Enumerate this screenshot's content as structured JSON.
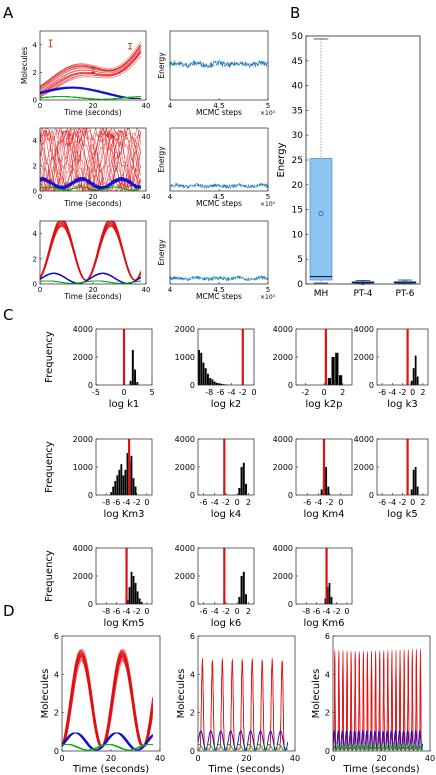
{
  "panels": {
    "A": "A",
    "B": "B",
    "C": "C",
    "D": "D"
  },
  "chart_data": [
    {
      "id": "A-trajectories",
      "type": "line",
      "xlabel": "Time (seconds)",
      "ylabel": "Molecules",
      "xlim": [
        0,
        40
      ],
      "ylim": [
        0,
        5
      ],
      "x_ticks": [
        "0",
        "20",
        "40"
      ],
      "y_ticks": [
        "0",
        "2",
        "4"
      ],
      "rows": [
        {
          "ylabel_shown": true,
          "y_ticks": [
            "0",
            "2",
            "4"
          ],
          "error_bars": [
            {
              "x": 4,
              "y": 4.1,
              "err": 0.25
            },
            {
              "x": 20,
              "y": 2.2,
              "err": 0.2
            },
            {
              "x": 34,
              "y": 3.9,
              "err": 0.2
            }
          ],
          "fit_style": "broad-red-fan"
        },
        {
          "ylabel_shown": false,
          "y_ticks": [
            "0",
            "2",
            "4"
          ],
          "fit_style": "noisy-oscillation"
        },
        {
          "ylabel_shown": false,
          "y_ticks": [
            "0",
            "2",
            "4"
          ],
          "fit_style": "clean-oscillation"
        }
      ],
      "series": [
        {
          "color": "#e01010"
        },
        {
          "color": "#1010d0"
        },
        {
          "color": "#10b010"
        }
      ]
    },
    {
      "id": "A-energy",
      "type": "line",
      "xlabel": "MCMC  steps",
      "ylabel": "Energy",
      "x_ticks": [
        "4",
        "4.5",
        "5"
      ],
      "x_exponent": "×10⁵",
      "xlim": [
        4,
        5
      ],
      "ylim": [
        0,
        100
      ],
      "color": "#1a78c0",
      "rows": [
        {
          "level": 52,
          "noise": 4
        },
        {
          "level": 8,
          "noise": 3
        },
        {
          "level": 9,
          "noise": 3
        }
      ]
    },
    {
      "id": "B-boxplot",
      "type": "box",
      "ylabel": "Energy",
      "ylim": [
        0,
        50
      ],
      "y_ticks": [
        "0",
        "5",
        "10",
        "15",
        "20",
        "25",
        "30",
        "35",
        "40",
        "45",
        "50"
      ],
      "categories": [
        "MH",
        "PT-4",
        "PT-6"
      ],
      "boxes": [
        {
          "whisker_low": 0.2,
          "q1": 0.8,
          "median": 1.5,
          "q3": 25.3,
          "whisker_high": 49.4,
          "mean": 14.2
        },
        {
          "whisker_low": 0.1,
          "q1": 0.2,
          "median": 0.3,
          "q3": 0.5,
          "whisker_high": 0.7,
          "mean": 0.3
        },
        {
          "whisker_low": 0.1,
          "q1": 0.2,
          "median": 0.3,
          "q3": 0.5,
          "whisker_high": 0.8,
          "mean": 0.4
        }
      ],
      "box_color": "#8cc4f2",
      "median_color": "#002060"
    },
    {
      "id": "C-histograms",
      "type": "bar",
      "ylabel": "Frequency",
      "ylim": [
        0,
        4000
      ],
      "y_ticks": [
        "0",
        "2000",
        "4000"
      ],
      "marker_color": "#e01010",
      "histograms": [
        {
          "xlabel": "log k1",
          "x_ticks": [
            {
              "v": -5,
              "t": "-5"
            },
            {
              "v": 0,
              "t": "0"
            },
            {
              "v": 5,
              "t": "5"
            }
          ],
          "xlim": [
            -5,
            5
          ],
          "y_ticks": [
            "0",
            "2000",
            "4000"
          ],
          "ylim": [
            0,
            4000
          ],
          "true_value": 0,
          "bins": [
            [
              1.0,
              300
            ],
            [
              1.4,
              2500
            ],
            [
              1.8,
              1100
            ],
            [
              2.2,
              200
            ]
          ]
        },
        {
          "xlabel": "log k2",
          "x_ticks": [
            {
              "v": -8,
              "t": "-8"
            },
            {
              "v": -6,
              "t": "-6"
            },
            {
              "v": -4,
              "t": "-4"
            },
            {
              "v": -2,
              "t": "-2"
            },
            {
              "v": 0,
              "t": "0"
            }
          ],
          "xlim": [
            -10,
            0
          ],
          "y_ticks": [
            "0",
            "1000",
            "2000"
          ],
          "ylim": [
            0,
            2000
          ],
          "true_value": -2,
          "bins": [
            [
              -10,
              1250
            ],
            [
              -9.6,
              1150
            ],
            [
              -9.2,
              800
            ],
            [
              -8.8,
              600
            ],
            [
              -8.4,
              400
            ],
            [
              -8.0,
              250
            ],
            [
              -7.6,
              200
            ],
            [
              -7.2,
              120
            ],
            [
              -6.8,
              80
            ],
            [
              -6.4,
              60
            ],
            [
              -6.0,
              40
            ],
            [
              -5.6,
              30
            ],
            [
              -5.2,
              20
            ],
            [
              -4.8,
              10
            ]
          ]
        },
        {
          "xlabel": "log k2p",
          "x_ticks": [
            {
              "v": -2,
              "t": "-2"
            },
            {
              "v": 0,
              "t": "0"
            },
            {
              "v": 2,
              "t": "2"
            }
          ],
          "xlim": [
            -3,
            3
          ],
          "y_ticks": [
            "0",
            "2000",
            "4000"
          ],
          "ylim": [
            0,
            4000
          ],
          "true_value": 0.2,
          "bins": [
            [
              0.4,
              500
            ],
            [
              0.8,
              2000
            ],
            [
              1.2,
              2300
            ],
            [
              1.6,
              700
            ]
          ]
        },
        {
          "xlabel": "log k3",
          "x_ticks": [
            {
              "v": -6,
              "t": "-6"
            },
            {
              "v": -4,
              "t": "-4"
            },
            {
              "v": -2,
              "t": "-2"
            },
            {
              "v": 0,
              "t": "0"
            },
            {
              "v": 2,
              "t": "2"
            }
          ],
          "xlim": [
            -7,
            3
          ],
          "y_ticks": [
            "0",
            "2000",
            "4000"
          ],
          "ylim": [
            0,
            4000
          ],
          "true_value": -1,
          "bins": [
            [
              -0.4,
              300
            ],
            [
              0.0,
              1200
            ],
            [
              0.4,
              2100
            ],
            [
              0.8,
              600
            ]
          ]
        },
        {
          "xlabel": "log Km3",
          "x_ticks": [
            {
              "v": -8,
              "t": "-8"
            },
            {
              "v": -6,
              "t": "-6"
            },
            {
              "v": -4,
              "t": "-4"
            },
            {
              "v": -2,
              "t": "-2"
            },
            {
              "v": 0,
              "t": "0"
            }
          ],
          "xlim": [
            -10,
            1
          ],
          "y_ticks": [
            "0",
            "1000",
            "2000"
          ],
          "ylim": [
            0,
            2000
          ],
          "true_value": -3.5,
          "bins": [
            [
              -7.2,
              100
            ],
            [
              -6.8,
              300
            ],
            [
              -6.4,
              500
            ],
            [
              -6.0,
              700
            ],
            [
              -5.6,
              900
            ],
            [
              -5.2,
              1100
            ],
            [
              -4.8,
              700
            ],
            [
              -4.4,
              900
            ],
            [
              -4.0,
              1500
            ],
            [
              -3.6,
              1200
            ],
            [
              -3.2,
              1400
            ],
            [
              -2.8,
              600
            ],
            [
              -2.4,
              300
            ]
          ]
        },
        {
          "xlabel": "log k4",
          "x_ticks": [
            {
              "v": -6,
              "t": "-6"
            },
            {
              "v": -4,
              "t": "-4"
            },
            {
              "v": -2,
              "t": "-2"
            },
            {
              "v": 0,
              "t": "0"
            },
            {
              "v": 2,
              "t": "2"
            }
          ],
          "xlim": [
            -7,
            3
          ],
          "y_ticks": [
            "0",
            "2000",
            "4000"
          ],
          "ylim": [
            0,
            4000
          ],
          "true_value": -2.3,
          "bins": [
            [
              0.2,
              500
            ],
            [
              0.6,
              2000
            ],
            [
              1.0,
              2300
            ],
            [
              1.4,
              800
            ]
          ]
        },
        {
          "xlabel": "log Km4",
          "x_ticks": [
            {
              "v": -6,
              "t": "-6"
            },
            {
              "v": -4,
              "t": "-4"
            },
            {
              "v": -2,
              "t": "-2"
            },
            {
              "v": 0,
              "t": "0"
            }
          ],
          "xlim": [
            -8,
            2
          ],
          "y_ticks": [
            "0",
            "2000",
            "4000"
          ],
          "ylim": [
            0,
            4000
          ],
          "true_value": -3,
          "bins": [
            [
              -3.6,
              400
            ],
            [
              -3.2,
              1200
            ],
            [
              -2.8,
              2000
            ],
            [
              -2.4,
              600
            ]
          ]
        },
        {
          "xlabel": "log k5",
          "x_ticks": [
            {
              "v": -6,
              "t": "-6"
            },
            {
              "v": -4,
              "t": "-4"
            },
            {
              "v": -2,
              "t": "-2"
            },
            {
              "v": 0,
              "t": "0"
            },
            {
              "v": 2,
              "t": "2"
            }
          ],
          "xlim": [
            -7,
            3
          ],
          "y_ticks": [
            "0",
            "2000",
            "4000"
          ],
          "ylim": [
            0,
            4000
          ],
          "true_value": -1,
          "bins": [
            [
              -0.4,
              400
            ],
            [
              0.0,
              1800
            ],
            [
              0.4,
              2000
            ],
            [
              0.8,
              600
            ]
          ]
        },
        {
          "xlabel": "log Km5",
          "x_ticks": [
            {
              "v": -8,
              "t": "-8"
            },
            {
              "v": -6,
              "t": "-6"
            },
            {
              "v": -4,
              "t": "-4"
            },
            {
              "v": -2,
              "t": "-2"
            },
            {
              "v": 0,
              "t": "0"
            }
          ],
          "xlim": [
            -10,
            1
          ],
          "y_ticks": [
            "0",
            "2000",
            "4000"
          ],
          "ylim": [
            0,
            4000
          ],
          "true_value": -4,
          "bins": [
            [
              -4.0,
              300
            ],
            [
              -3.6,
              1200
            ],
            [
              -3.2,
              2300
            ],
            [
              -2.8,
              2000
            ],
            [
              -2.4,
              1500
            ],
            [
              -2.0,
              900
            ],
            [
              -1.6,
              400
            ],
            [
              -1.2,
              150
            ]
          ]
        },
        {
          "xlabel": "log k6",
          "x_ticks": [
            {
              "v": -6,
              "t": "-6"
            },
            {
              "v": -4,
              "t": "-4"
            },
            {
              "v": -2,
              "t": "-2"
            },
            {
              "v": 0,
              "t": "0"
            },
            {
              "v": 2,
              "t": "2"
            }
          ],
          "xlim": [
            -7,
            3
          ],
          "y_ticks": [
            "0",
            "2000",
            "4000"
          ],
          "ylim": [
            0,
            4000
          ],
          "true_value": -2.3,
          "bins": [
            [
              0.2,
              500
            ],
            [
              0.6,
              2000
            ],
            [
              1.0,
              2300
            ],
            [
              1.4,
              700
            ]
          ]
        },
        {
          "xlabel": "log Km6",
          "x_ticks": [
            {
              "v": -8,
              "t": "-8"
            },
            {
              "v": -6,
              "t": "-6"
            },
            {
              "v": -4,
              "t": "-4"
            },
            {
              "v": -2,
              "t": "-2"
            },
            {
              "v": 0,
              "t": "0"
            }
          ],
          "xlim": [
            -10,
            1
          ],
          "y_ticks": [
            "0",
            "2000",
            "4000"
          ],
          "ylim": [
            0,
            4000
          ],
          "true_value": -4,
          "bins": [
            [
              -4.4,
              400
            ],
            [
              -4.0,
              1200
            ],
            [
              -3.6,
              1500
            ],
            [
              -3.2,
              500
            ]
          ]
        }
      ]
    },
    {
      "id": "D-simulations",
      "type": "line",
      "xlabel": "Time (seconds)",
      "ylabel": "Molecules",
      "xlim": [
        0,
        40
      ],
      "ylim": [
        0,
        6
      ],
      "x_ticks": [
        "0",
        "20",
        "40"
      ],
      "y_ticks": [
        "0",
        "2",
        "4",
        "6"
      ],
      "panels": [
        {
          "periods": 2.2,
          "amp": 5.0
        },
        {
          "periods": 9,
          "amp": 4.9
        },
        {
          "periods": 22,
          "amp": 5.0
        }
      ],
      "series": [
        {
          "color": "#e01010"
        },
        {
          "color": "#1010d0"
        },
        {
          "color": "#10b010"
        }
      ]
    }
  ]
}
